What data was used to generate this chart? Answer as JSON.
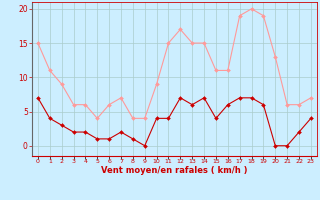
{
  "x": [
    0,
    1,
    2,
    3,
    4,
    5,
    6,
    7,
    8,
    9,
    10,
    11,
    12,
    13,
    14,
    15,
    16,
    17,
    18,
    19,
    20,
    21,
    22,
    23
  ],
  "wind_avg": [
    7,
    4,
    3,
    2,
    2,
    1,
    1,
    2,
    1,
    0,
    4,
    4,
    7,
    6,
    7,
    4,
    6,
    7,
    7,
    6,
    0,
    0,
    2,
    4
  ],
  "wind_gust": [
    15,
    11,
    9,
    6,
    6,
    4,
    6,
    7,
    4,
    4,
    9,
    15,
    17,
    15,
    15,
    11,
    11,
    19,
    20,
    19,
    13,
    6,
    6,
    7
  ],
  "avg_color": "#cc0000",
  "gust_color": "#ff9999",
  "bg_color": "#cceeff",
  "grid_color": "#aacccc",
  "xlabel": "Vent moyen/en rafales ( km/h )",
  "yticks": [
    0,
    5,
    10,
    15,
    20
  ],
  "ylim": [
    -1.5,
    21
  ],
  "xlim": [
    -0.5,
    23.5
  ]
}
